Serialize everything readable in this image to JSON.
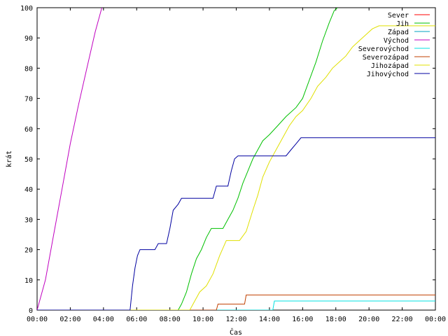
{
  "chart_data": {
    "type": "line",
    "title": "",
    "xlabel": "Čas",
    "ylabel": "krát",
    "xlim": [
      0,
      24
    ],
    "ylim": [
      0,
      100
    ],
    "x_ticks": [
      "00:00",
      "02:00",
      "04:00",
      "06:00",
      "08:00",
      "10:00",
      "12:00",
      "14:00",
      "16:00",
      "18:00",
      "20:00",
      "22:00",
      "00:00"
    ],
    "y_ticks": [
      0,
      10,
      20,
      30,
      40,
      50,
      60,
      70,
      80,
      90,
      100
    ],
    "grid": false,
    "legend_position": "top-right",
    "series": [
      {
        "name": "Sever",
        "color": "#ff0000",
        "points": []
      },
      {
        "name": "Jih",
        "color": "#00c000",
        "points": [
          [
            0,
            0
          ],
          [
            8.5,
            0
          ],
          [
            8.7,
            2
          ],
          [
            9.0,
            6
          ],
          [
            9.3,
            12
          ],
          [
            9.6,
            17
          ],
          [
            9.9,
            20
          ],
          [
            10.2,
            24
          ],
          [
            10.5,
            27
          ],
          [
            11.2,
            27
          ],
          [
            11.5,
            30
          ],
          [
            11.8,
            33
          ],
          [
            12.1,
            37
          ],
          [
            12.4,
            42
          ],
          [
            12.7,
            46
          ],
          [
            13.0,
            50
          ],
          [
            13.3,
            53
          ],
          [
            13.6,
            56
          ],
          [
            14.0,
            58
          ],
          [
            14.5,
            61
          ],
          [
            15.0,
            64
          ],
          [
            15.6,
            67
          ],
          [
            16.0,
            70
          ],
          [
            16.4,
            76
          ],
          [
            16.8,
            82
          ],
          [
            17.2,
            89
          ],
          [
            17.6,
            95
          ],
          [
            17.9,
            99
          ],
          [
            18.1,
            100
          ]
        ]
      },
      {
        "name": "Západ",
        "color": "#00a0c0",
        "points": []
      },
      {
        "name": "Východ",
        "color": "#c000c0",
        "points": [
          [
            0,
            0
          ],
          [
            0.5,
            10
          ],
          [
            1.0,
            25
          ],
          [
            1.5,
            40
          ],
          [
            2.0,
            55
          ],
          [
            2.5,
            68
          ],
          [
            3.0,
            80
          ],
          [
            3.5,
            92
          ],
          [
            3.9,
            100
          ]
        ]
      },
      {
        "name": "Severovýchod",
        "color": "#00e0e0",
        "points": [
          [
            0,
            0
          ],
          [
            14.2,
            0
          ],
          [
            14.3,
            3
          ],
          [
            24,
            3
          ]
        ]
      },
      {
        "name": "Severozápad",
        "color": "#c04000",
        "points": [
          [
            0,
            0
          ],
          [
            10.8,
            0
          ],
          [
            10.9,
            2
          ],
          [
            12.5,
            2
          ],
          [
            12.6,
            5
          ],
          [
            24,
            5
          ]
        ]
      },
      {
        "name": "Jihozápad",
        "color": "#e0e000",
        "points": [
          [
            0,
            0
          ],
          [
            9.2,
            0
          ],
          [
            9.5,
            3
          ],
          [
            9.8,
            6
          ],
          [
            10.2,
            8
          ],
          [
            10.6,
            12
          ],
          [
            11.0,
            18
          ],
          [
            11.4,
            23
          ],
          [
            12.2,
            23
          ],
          [
            12.6,
            26
          ],
          [
            13.0,
            33
          ],
          [
            13.3,
            38
          ],
          [
            13.6,
            44
          ],
          [
            14.0,
            49
          ],
          [
            14.4,
            53
          ],
          [
            14.8,
            57
          ],
          [
            15.2,
            61
          ],
          [
            15.6,
            64
          ],
          [
            16.0,
            66
          ],
          [
            16.5,
            70
          ],
          [
            16.9,
            74
          ],
          [
            17.4,
            77
          ],
          [
            17.8,
            80
          ],
          [
            18.2,
            82
          ],
          [
            18.6,
            84
          ],
          [
            19.0,
            87
          ],
          [
            19.4,
            89
          ],
          [
            19.8,
            91
          ],
          [
            20.2,
            93
          ],
          [
            20.6,
            94
          ],
          [
            24,
            94
          ]
        ]
      },
      {
        "name": "Jihovýchod",
        "color": "#0000a0",
        "points": [
          [
            0,
            0
          ],
          [
            5.6,
            0
          ],
          [
            5.75,
            8
          ],
          [
            5.9,
            14
          ],
          [
            6.05,
            18
          ],
          [
            6.2,
            20
          ],
          [
            7.1,
            20
          ],
          [
            7.3,
            22
          ],
          [
            7.8,
            22
          ],
          [
            8.0,
            27
          ],
          [
            8.2,
            33
          ],
          [
            8.5,
            35
          ],
          [
            8.7,
            37
          ],
          [
            10.6,
            37
          ],
          [
            10.8,
            41
          ],
          [
            11.5,
            41
          ],
          [
            11.7,
            46
          ],
          [
            11.9,
            50
          ],
          [
            12.1,
            51
          ],
          [
            15.0,
            51
          ],
          [
            15.3,
            53
          ],
          [
            15.6,
            55
          ],
          [
            15.9,
            57
          ],
          [
            24,
            57
          ]
        ]
      }
    ]
  }
}
